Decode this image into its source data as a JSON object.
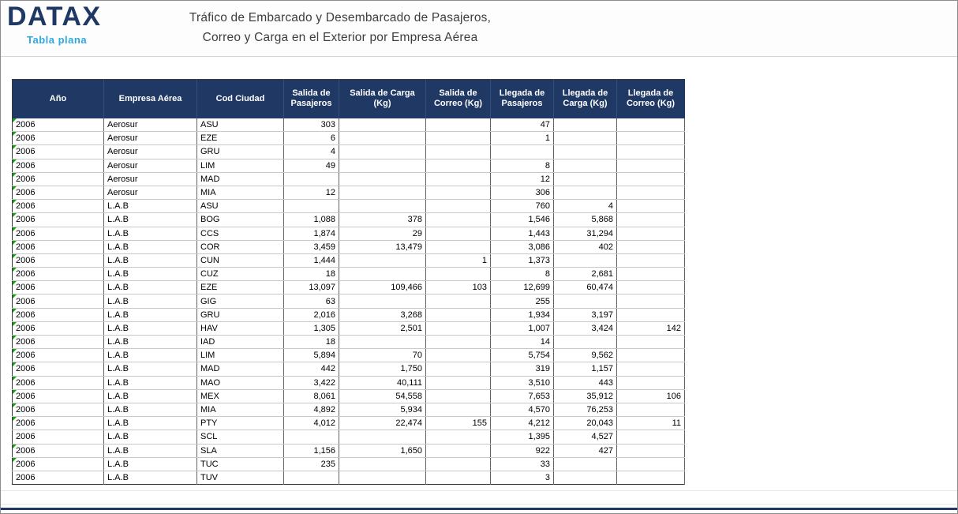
{
  "header": {
    "logo": "DATAX",
    "logo_subtitle": "Tabla plana",
    "title_line1": "Tráfico de Embarcado y Desembarcado de Pasajeros,",
    "title_line2": "Correo y Carga en el Exterior por Empresa Aérea"
  },
  "colors": {
    "table_header_bg": "#1F3864",
    "logo_navy": "#1F3864",
    "logo_light_blue": "#2FA8DF",
    "error_indicator_green": "#1A9E1A",
    "bottom_accent_bar": "#1F3864"
  },
  "icons": {
    "error_indicator": "green-corner-triangle"
  },
  "table": {
    "columns": [
      "Año",
      "Empresa Aérea",
      "Cod Ciudad",
      "Salida de Pasajeros",
      "Salida de Carga (Kg)",
      "Salida de Correo (Kg)",
      "Llegada de Pasajeros",
      "Llegada de Carga (Kg)",
      "Llegada de Correo (Kg)"
    ],
    "rows": [
      {
        "indicator": true,
        "cells": [
          "2006",
          "Aerosur",
          "ASU",
          "303",
          "",
          "",
          "47",
          "",
          ""
        ]
      },
      {
        "indicator": true,
        "cells": [
          "2006",
          "Aerosur",
          "EZE",
          "6",
          "",
          "",
          "1",
          "",
          ""
        ]
      },
      {
        "indicator": true,
        "cells": [
          "2006",
          "Aerosur",
          "GRU",
          "4",
          "",
          "",
          "",
          "",
          ""
        ]
      },
      {
        "indicator": true,
        "cells": [
          "2006",
          "Aerosur",
          "LIM",
          "49",
          "",
          "",
          "8",
          "",
          ""
        ]
      },
      {
        "indicator": true,
        "cells": [
          "2006",
          "Aerosur",
          "MAD",
          "",
          "",
          "",
          "12",
          "",
          ""
        ]
      },
      {
        "indicator": true,
        "cells": [
          "2006",
          "Aerosur",
          "MIA",
          "12",
          "",
          "",
          "306",
          "",
          ""
        ]
      },
      {
        "indicator": true,
        "cells": [
          "2006",
          "L.A.B",
          "ASU",
          "",
          "",
          "",
          "760",
          "4",
          ""
        ]
      },
      {
        "indicator": true,
        "cells": [
          "2006",
          "L.A.B",
          "BOG",
          "1,088",
          "378",
          "",
          "1,546",
          "5,868",
          ""
        ]
      },
      {
        "indicator": true,
        "cells": [
          "2006",
          "L.A.B",
          "CCS",
          "1,874",
          "29",
          "",
          "1,443",
          "31,294",
          ""
        ]
      },
      {
        "indicator": true,
        "cells": [
          "2006",
          "L.A.B",
          "COR",
          "3,459",
          "13,479",
          "",
          "3,086",
          "402",
          ""
        ]
      },
      {
        "indicator": true,
        "cells": [
          "2006",
          "L.A.B",
          "CUN",
          "1,444",
          "",
          "1",
          "1,373",
          "",
          ""
        ]
      },
      {
        "indicator": true,
        "cells": [
          "2006",
          "L.A.B",
          "CUZ",
          "18",
          "",
          "",
          "8",
          "2,681",
          ""
        ]
      },
      {
        "indicator": true,
        "cells": [
          "2006",
          "L.A.B",
          "EZE",
          "13,097",
          "109,466",
          "103",
          "12,699",
          "60,474",
          ""
        ]
      },
      {
        "indicator": true,
        "cells": [
          "2006",
          "L.A.B",
          "GIG",
          "63",
          "",
          "",
          "255",
          "",
          ""
        ]
      },
      {
        "indicator": true,
        "cells": [
          "2006",
          "L.A.B",
          "GRU",
          "2,016",
          "3,268",
          "",
          "1,934",
          "3,197",
          ""
        ]
      },
      {
        "indicator": true,
        "cells": [
          "2006",
          "L.A.B",
          "HAV",
          "1,305",
          "2,501",
          "",
          "1,007",
          "3,424",
          "142"
        ]
      },
      {
        "indicator": true,
        "cells": [
          "2006",
          "L.A.B",
          "IAD",
          "18",
          "",
          "",
          "14",
          "",
          ""
        ]
      },
      {
        "indicator": true,
        "cells": [
          "2006",
          "L.A.B",
          "LIM",
          "5,894",
          "70",
          "",
          "5,754",
          "9,562",
          ""
        ]
      },
      {
        "indicator": true,
        "cells": [
          "2006",
          "L.A.B",
          "MAD",
          "442",
          "1,750",
          "",
          "319",
          "1,157",
          ""
        ]
      },
      {
        "indicator": true,
        "cells": [
          "2006",
          "L.A.B",
          "MAO",
          "3,422",
          "40,111",
          "",
          "3,510",
          "443",
          ""
        ]
      },
      {
        "indicator": true,
        "cells": [
          "2006",
          "L.A.B",
          "MEX",
          "8,061",
          "54,558",
          "",
          "7,653",
          "35,912",
          "106"
        ]
      },
      {
        "indicator": true,
        "cells": [
          "2006",
          "L.A.B",
          "MIA",
          "4,892",
          "5,934",
          "",
          "4,570",
          "76,253",
          ""
        ]
      },
      {
        "indicator": true,
        "cells": [
          "2006",
          "L.A.B",
          "PTY",
          "4,012",
          "22,474",
          "155",
          "4,212",
          "20,043",
          "11"
        ]
      },
      {
        "indicator": false,
        "cells": [
          "2006",
          "L.A.B",
          "SCL",
          "",
          "",
          "",
          "1,395",
          "4,527",
          ""
        ]
      },
      {
        "indicator": true,
        "cells": [
          "2006",
          "L.A.B",
          "SLA",
          "1,156",
          "1,650",
          "",
          "922",
          "427",
          ""
        ]
      },
      {
        "indicator": true,
        "cells": [
          "2006",
          "L.A.B",
          "TUC",
          "235",
          "",
          "",
          "33",
          "",
          ""
        ]
      },
      {
        "indicator": false,
        "cells": [
          "2006",
          "L.A.B",
          "TUV",
          "",
          "",
          "",
          "3",
          "",
          ""
        ]
      }
    ]
  }
}
